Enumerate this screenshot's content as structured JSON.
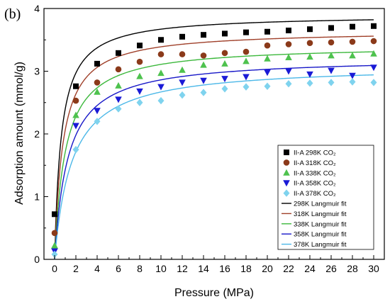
{
  "panel_label": "(b)",
  "chart_data": {
    "type": "scatter",
    "xlabel": "Pressure (MPa)",
    "ylabel": "Adsorption amount (mmol/g)",
    "xlim": [
      -1,
      31
    ],
    "ylim": [
      0,
      4
    ],
    "x_ticks": [
      0,
      2,
      4,
      6,
      8,
      10,
      12,
      14,
      16,
      18,
      20,
      22,
      24,
      26,
      28,
      30
    ],
    "y_ticks": [
      0,
      1,
      2,
      3,
      4
    ],
    "grid": false,
    "legend_position": "bottom-right",
    "x": [
      0,
      2,
      4,
      6,
      8,
      10,
      12,
      14,
      16,
      18,
      20,
      22,
      24,
      26,
      28,
      30
    ],
    "series": [
      {
        "name": "II-A 298K CO₂",
        "marker": "square",
        "color": "#000000",
        "values": [
          0.72,
          2.76,
          3.12,
          3.29,
          3.41,
          3.5,
          3.55,
          3.58,
          3.6,
          3.62,
          3.63,
          3.65,
          3.67,
          3.69,
          3.71,
          3.72
        ]
      },
      {
        "name": "II-A 318K CO₂",
        "marker": "circle",
        "color": "#8b3a1a",
        "values": [
          0.42,
          2.53,
          2.82,
          3.03,
          3.15,
          3.27,
          3.27,
          3.25,
          3.29,
          3.31,
          3.41,
          3.43,
          3.45,
          3.46,
          3.47,
          3.48
        ]
      },
      {
        "name": "II-A 338K CO₂",
        "marker": "triangle-up",
        "color": "#4ec24e",
        "values": [
          0.22,
          2.3,
          2.67,
          2.77,
          2.92,
          2.97,
          3.02,
          3.1,
          3.12,
          3.16,
          3.2,
          3.22,
          3.23,
          3.25,
          3.25,
          3.28
        ]
      },
      {
        "name": "II-A 358K CO₂",
        "marker": "triangle-down",
        "color": "#1a1ad6",
        "values": [
          0.13,
          2.13,
          2.37,
          2.55,
          2.68,
          2.75,
          2.82,
          2.85,
          2.88,
          2.91,
          2.98,
          3.0,
          2.95,
          3.01,
          2.93,
          3.06
        ]
      },
      {
        "name": "II-A 378K CO₂",
        "marker": "diamond",
        "color": "#7fd3ee",
        "values": [
          0.08,
          1.75,
          2.2,
          2.4,
          2.5,
          2.53,
          2.62,
          2.66,
          2.72,
          2.75,
          2.76,
          2.8,
          2.81,
          2.82,
          2.83,
          2.82
        ]
      }
    ],
    "fits": [
      {
        "name": "298K Langmuir fit",
        "color": "#000000",
        "qm": 3.9,
        "b": 1.6
      },
      {
        "name": "318K Langmuir fit",
        "color": "#a0402a",
        "qm": 3.65,
        "b": 1.3
      },
      {
        "name": "338K Langmuir fit",
        "color": "#3cb83c",
        "qm": 3.42,
        "b": 1.0
      },
      {
        "name": "358K Langmuir fit",
        "color": "#1818c8",
        "qm": 3.22,
        "b": 0.8
      },
      {
        "name": "378K Langmuir fit",
        "color": "#4cb8e8",
        "qm": 3.1,
        "b": 0.62
      }
    ]
  }
}
